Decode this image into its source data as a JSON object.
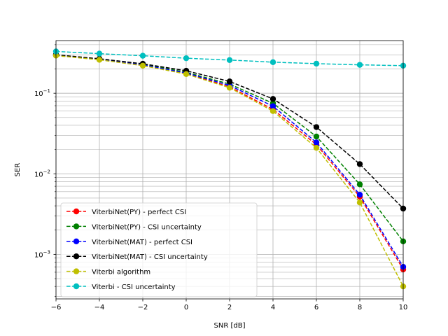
{
  "chart_data": {
    "type": "line",
    "title": "",
    "xlabel": "SNR [dB]",
    "ylabel": "SER",
    "yscale": "log",
    "xlim": [
      -6,
      10
    ],
    "ylim": [
      0.00028,
      0.45
    ],
    "grid": true,
    "legend_position": "lower-left",
    "x": [
      -6,
      -4,
      -2,
      0,
      2,
      4,
      6,
      8,
      10
    ],
    "x_tick_labels": [
      "−6",
      "−4",
      "−2",
      "0",
      "2",
      "4",
      "6",
      "8",
      "10"
    ],
    "y_major_ticks": [
      {
        "value": 0.1,
        "base": "10",
        "exp": "−1"
      },
      {
        "value": 0.01,
        "base": "10",
        "exp": "−2"
      },
      {
        "value": 0.001,
        "base": "10",
        "exp": "−3"
      }
    ],
    "series": [
      {
        "name": "ViterbiNet(PY) - perfect CSI",
        "color": "#ff0000",
        "values": [
          0.295,
          0.262,
          0.222,
          0.176,
          0.12,
          0.063,
          0.023,
          0.0052,
          0.00065
        ]
      },
      {
        "name": "ViterbiNet(PY) - CSI uncertainty",
        "color": "#008000",
        "values": [
          0.3,
          0.265,
          0.23,
          0.182,
          0.13,
          0.075,
          0.029,
          0.0074,
          0.00145
        ]
      },
      {
        "name": "ViterbiNet(MAT) - perfect CSI",
        "color": "#0000ff",
        "values": [
          0.297,
          0.263,
          0.225,
          0.178,
          0.125,
          0.069,
          0.0245,
          0.0055,
          0.0007
        ]
      },
      {
        "name": "ViterbiNet(MAT) - CSI uncertainty",
        "color": "#000000",
        "values": [
          0.3,
          0.268,
          0.232,
          0.19,
          0.14,
          0.085,
          0.038,
          0.0132,
          0.0037
        ]
      },
      {
        "name": "Viterbi algorithm",
        "color": "#bfbf00",
        "values": [
          0.293,
          0.26,
          0.22,
          0.173,
          0.117,
          0.06,
          0.021,
          0.0044,
          0.0004
        ]
      },
      {
        "name": "Viterbi - CSI uncertainty",
        "color": "#00bfbf",
        "values": [
          0.33,
          0.31,
          0.292,
          0.272,
          0.258,
          0.243,
          0.233,
          0.225,
          0.22
        ]
      }
    ]
  }
}
